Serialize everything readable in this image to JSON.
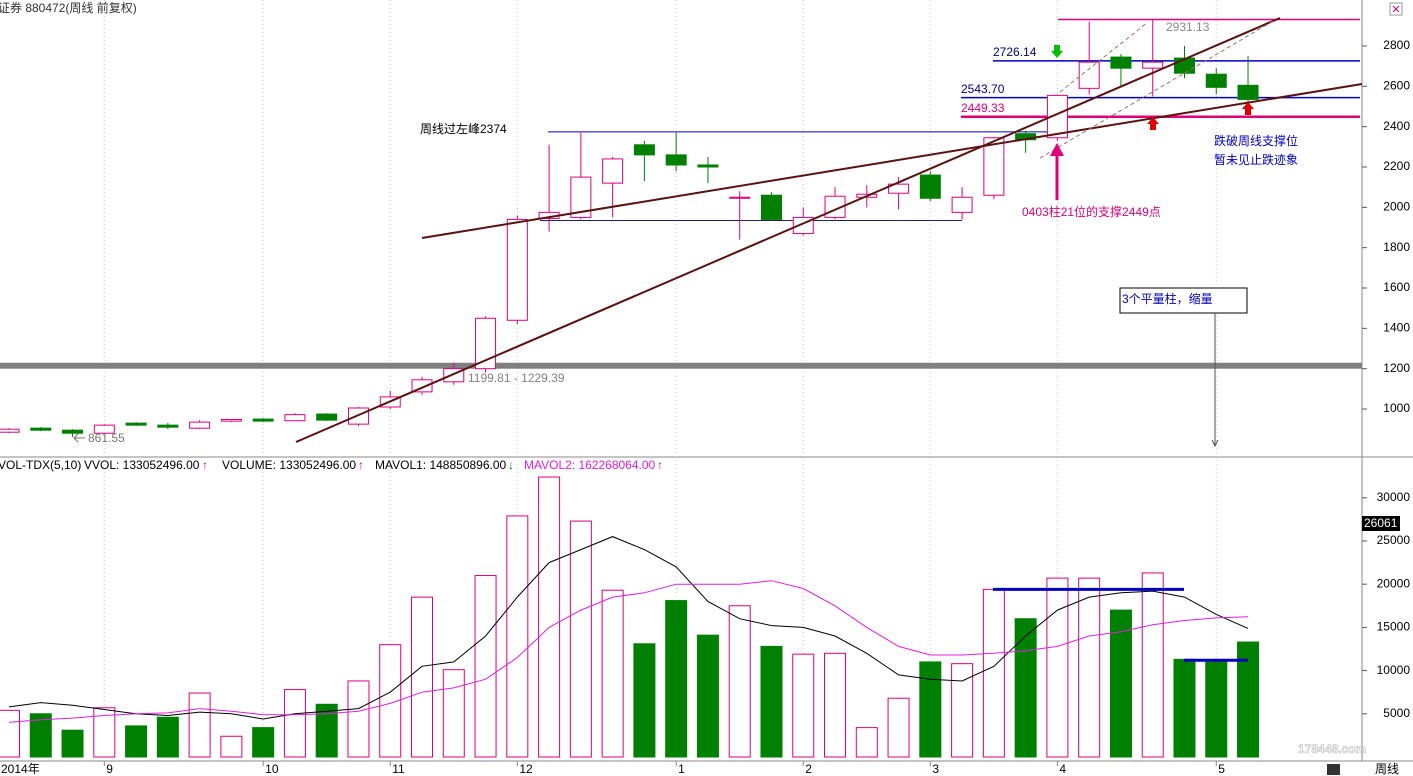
{
  "chart_data": [
    {
      "type": "candlestick",
      "title": "证券 880472(周线 前复权)",
      "open": [
        885,
        905,
        895,
        880,
        930,
        920,
        905,
        940,
        950,
        942,
        975,
        925,
        1010,
        1085,
        1135,
        1200,
        1440,
        1945,
        1950,
        2120,
        2310,
        2260,
        2210,
        2045,
        2060,
        1870,
        1950,
        2050,
        2070,
        2160,
        1975,
        2060,
        2365,
        2345,
        2590,
        2745,
        2690,
        2740,
        2660,
        2605
      ],
      "close": [
        900,
        895,
        880,
        920,
        920,
        910,
        935,
        948,
        940,
        972,
        945,
        1005,
        1060,
        1145,
        1200,
        1450,
        1940,
        1975,
        2150,
        2240,
        2260,
        2210,
        2200,
        2050,
        1940,
        1950,
        2055,
        2065,
        2115,
        2045,
        2050,
        2345,
        2335,
        2555,
        2720,
        2690,
        2720,
        2665,
        2595,
        2535
      ],
      "high": [
        905,
        910,
        900,
        925,
        935,
        930,
        945,
        950,
        955,
        980,
        980,
        1010,
        1090,
        1160,
        1230,
        1460,
        1960,
        2310,
        2370,
        2250,
        2330,
        2370,
        2250,
        2080,
        2075,
        2000,
        2100,
        2110,
        2150,
        2180,
        2100,
        2350,
        2380,
        2560,
        2920,
        2760,
        2931.13,
        2800,
        2690,
        2750
      ],
      "low": [
        880,
        890,
        861.55,
        875,
        915,
        900,
        900,
        935,
        935,
        940,
        940,
        915,
        1000,
        1070,
        1120,
        1180,
        1420,
        1880,
        1940,
        1950,
        2130,
        2180,
        2120,
        1840,
        1935,
        1860,
        1940,
        2000,
        1990,
        2030,
        1940,
        2040,
        2270,
        2330,
        2560,
        2600,
        2550,
        2640,
        2560,
        2520
      ],
      "up_color": "#e0007a",
      "down_color": "#008000",
      "ylim": [
        772,
        3028
      ],
      "yticks": [
        1000,
        1200,
        1400,
        1600,
        1800,
        2000,
        2200,
        2400,
        2600,
        2800
      ],
      "levels": [
        {
          "value": 2726.14,
          "color": "#0000c0"
        },
        {
          "value": 2543.7,
          "value_label": "2543.70",
          "color": "#0000c0"
        },
        {
          "value": 2449.33,
          "color": "#e0007a"
        },
        {
          "value": 2374,
          "color": "#0000c0"
        },
        {
          "value": 1935,
          "color": "#202060"
        }
      ],
      "band": {
        "low": 1199.81,
        "high": 1229.39,
        "label": "1199.81 - 1229.39",
        "color": "#808080"
      },
      "annotations": [
        "周线过左峰2374",
        "0403柱21位的支撑2449点",
        "跌破周线支撑位",
        "暂未见止跌迹象",
        "3个平量柱，缩量"
      ]
    },
    {
      "type": "bar",
      "title": "VOL-TDX(5,10)",
      "categories": [
        "2014年",
        null,
        null,
        "9",
        null,
        null,
        null,
        null,
        "10",
        null,
        null,
        null,
        "11",
        null,
        null,
        null,
        "12",
        null,
        null,
        null,
        null,
        "1",
        null,
        null,
        null,
        "2",
        null,
        null,
        null,
        "3",
        null,
        null,
        null,
        "4",
        null,
        null,
        null,
        null,
        "5",
        null
      ],
      "values": [
        5400,
        5000,
        3100,
        5700,
        3600,
        4600,
        7400,
        2400,
        3400,
        7800,
        6100,
        8800,
        13000,
        18500,
        10100,
        21000,
        27900,
        32400,
        27300,
        19300,
        13100,
        18100,
        14100,
        17500,
        12800,
        11900,
        12000,
        3400,
        6800,
        11000,
        10800,
        19400,
        16000,
        20700,
        20700,
        17000,
        21300,
        11300,
        11100,
        13305.2496
      ],
      "readouts": [
        {
          "text": "VVOL: 133052496.00",
          "arrow": "↑"
        },
        {
          "text": "VOLUME: 133052496.00",
          "arrow": "↑"
        }
      ],
      "series": [
        {
          "name": "MAVOL1: 148850896.00",
          "arrow": "↓",
          "color": "#000000",
          "values": [
            5800,
            6300,
            6000,
            5500,
            5000,
            4800,
            5200,
            5000,
            4400,
            5000,
            5300,
            5600,
            7500,
            10500,
            11000,
            14000,
            18500,
            22500,
            24000,
            25500,
            24000,
            22000,
            18000,
            16000,
            15200,
            15000,
            14000,
            12000,
            9500,
            9000,
            8800,
            10500,
            14000,
            17000,
            18500,
            19000,
            19200,
            18500,
            16500,
            14885.0896
          ]
        },
        {
          "name": "MAVOL2: 162268064.00",
          "arrow": "↑",
          "color": "#e020e0",
          "values": [
            4000,
            4300,
            4500,
            4800,
            5000,
            5100,
            5600,
            5300,
            4900,
            4900,
            5000,
            5300,
            6200,
            7500,
            8000,
            9000,
            11500,
            15000,
            17000,
            18500,
            19000,
            20000,
            20000,
            20000,
            20400,
            19500,
            17500,
            15000,
            12800,
            11800,
            11800,
            12000,
            12300,
            12800,
            14000,
            14500,
            15300,
            15800,
            16100,
            16226.8064
          ]
        }
      ],
      "ylim": [
        0,
        34600
      ],
      "yticks": [
        5000,
        10000,
        15000,
        20000,
        25000,
        30000
      ],
      "levels": [
        {
          "value": 19400,
          "color": "#0000c0"
        },
        {
          "value": 11200,
          "color": "#0000c0"
        }
      ],
      "cursor_label": "26061"
    }
  ],
  "footer": {
    "period": "周线",
    "watermark": "178448.com"
  }
}
